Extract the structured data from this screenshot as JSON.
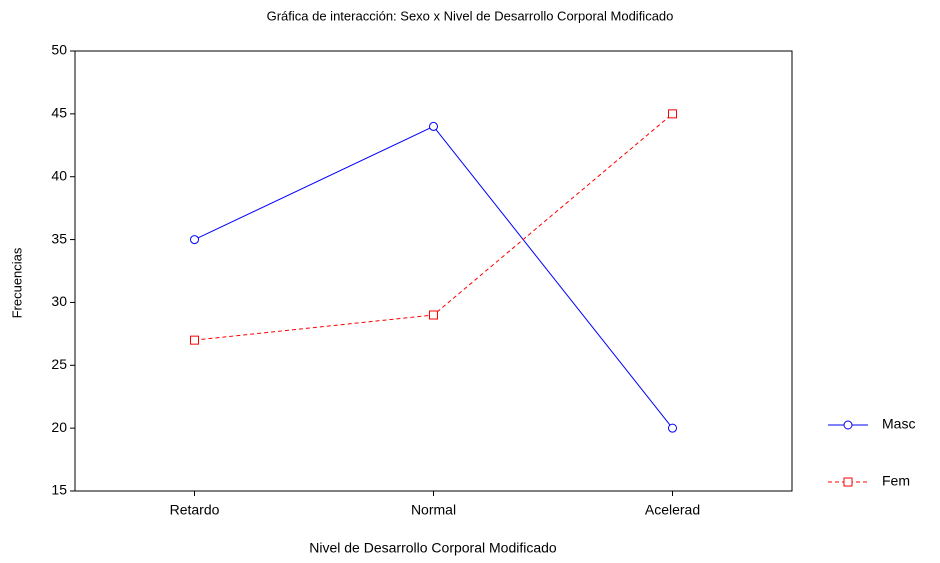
{
  "chart_data": {
    "type": "line",
    "title": "Gráfica de interacción: Sexo x Nivel de Desarrollo Corporal Modificado",
    "x_label": "Nivel de Desarrollo Corporal Modificado",
    "y_label": "Frecuencias",
    "categories": [
      "Retardo",
      "Normal",
      "Acelerad"
    ],
    "series": [
      {
        "name": "Masc",
        "color": "#0000ff",
        "line_style": "solid",
        "marker": "circle",
        "values": [
          35,
          44,
          20
        ]
      },
      {
        "name": "Fem",
        "color": "#ff0000",
        "line_style": "dashed",
        "marker": "square",
        "values": [
          27,
          29,
          45
        ]
      }
    ],
    "ylim": [
      15,
      50
    ],
    "yticks": [
      15,
      20,
      25,
      30,
      35,
      40,
      45,
      50
    ],
    "grid": false,
    "legend": "right"
  }
}
